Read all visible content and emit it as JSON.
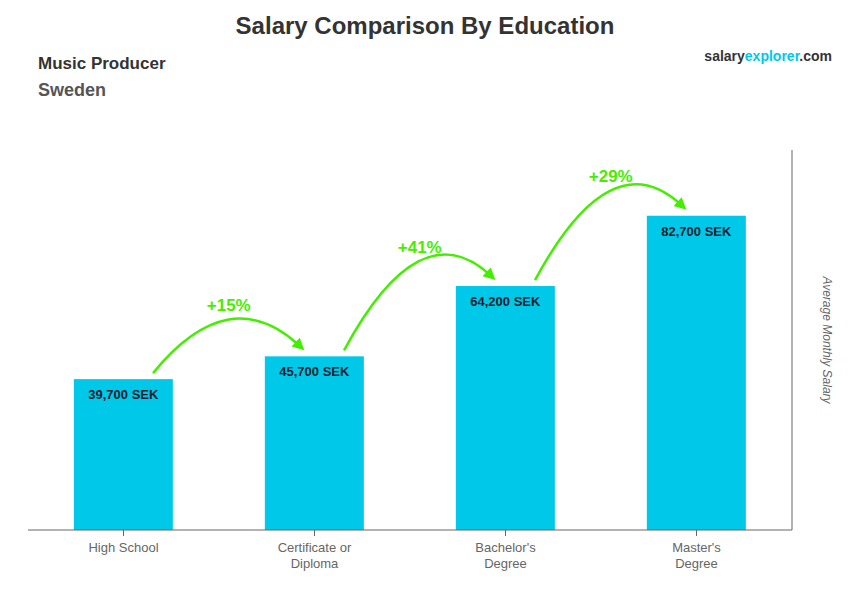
{
  "chart_data": {
    "type": "bar",
    "title": "Salary Comparison By Education",
    "subtitle": "Music Producer",
    "country": "Sweden",
    "watermark": [
      "salary",
      "explorer",
      ".com"
    ],
    "categories": [
      "High School",
      "Certificate or\nDiploma",
      "Bachelor's\nDegree",
      "Master's\nDegree"
    ],
    "values": [
      39700,
      45700,
      64200,
      82700
    ],
    "value_labels": [
      "39,700 SEK",
      "45,700 SEK",
      "64,200 SEK",
      "82,700 SEK"
    ],
    "data_labels": true,
    "color": "#00c8e8",
    "ylabel": "Average Monthly Salary",
    "ylim": [
      0,
      100000
    ],
    "tick_labels": "x",
    "annotations": [
      {
        "text": "+15%",
        "color": "#44ee00"
      },
      {
        "text": "+41%",
        "color": "#44ee00"
      },
      {
        "text": "+29%",
        "color": "#44ee00"
      }
    ]
  }
}
